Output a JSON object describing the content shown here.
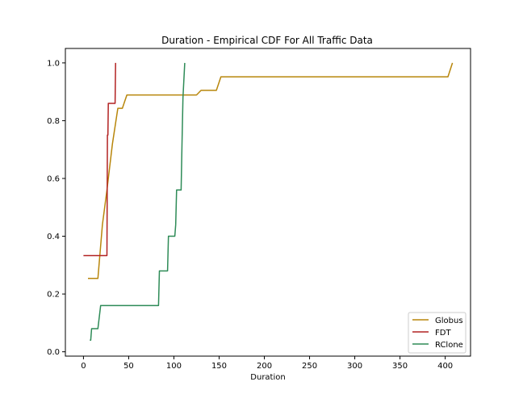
{
  "chart_data": {
    "type": "line",
    "title": "Duration - Empirical CDF For All Traffic Data",
    "xlabel": "Duration",
    "ylabel": "",
    "xlim": [
      -20,
      428
    ],
    "ylim": [
      -0.015,
      1.05
    ],
    "xticks": [
      0,
      50,
      100,
      150,
      200,
      250,
      300,
      350,
      400
    ],
    "yticks": [
      0.0,
      0.2,
      0.4,
      0.6,
      0.8,
      1.0
    ],
    "xtick_labels": [
      "0",
      "50",
      "100",
      "150",
      "200",
      "250",
      "300",
      "350",
      "400"
    ],
    "ytick_labels": [
      "0.0",
      "0.2",
      "0.4",
      "0.6",
      "0.8",
      "1.0"
    ],
    "grid": false,
    "legend_position": "lower right",
    "series": [
      {
        "name": "Globus",
        "color": "#b8860b",
        "points": [
          [
            5,
            0.254
          ],
          [
            16,
            0.254
          ],
          [
            21,
            0.44
          ],
          [
            26,
            0.56
          ],
          [
            32,
            0.72
          ],
          [
            38,
            0.843
          ],
          [
            43,
            0.843
          ],
          [
            48,
            0.889
          ],
          [
            125,
            0.889
          ],
          [
            130,
            0.905
          ],
          [
            147,
            0.905
          ],
          [
            152,
            0.952
          ],
          [
            403,
            0.952
          ],
          [
            408,
            1.0
          ]
        ]
      },
      {
        "name": "FDT",
        "color": "#b22222",
        "points": [
          [
            0,
            0.333
          ],
          [
            26,
            0.333
          ],
          [
            26.5,
            0.75
          ],
          [
            27,
            0.75
          ],
          [
            27.5,
            0.86
          ],
          [
            35,
            0.86
          ],
          [
            35.5,
            1.0
          ]
        ]
      },
      {
        "name": "RClone",
        "color": "#2e8b57",
        "points": [
          [
            7,
            0.04
          ],
          [
            8,
            0.04
          ],
          [
            9,
            0.08
          ],
          [
            16,
            0.08
          ],
          [
            19,
            0.16
          ],
          [
            83,
            0.16
          ],
          [
            84,
            0.28
          ],
          [
            93,
            0.28
          ],
          [
            94,
            0.4
          ],
          [
            101,
            0.4
          ],
          [
            102,
            0.44
          ],
          [
            103,
            0.56
          ],
          [
            108,
            0.56
          ],
          [
            109,
            0.72
          ],
          [
            110,
            0.88
          ],
          [
            112,
            1.0
          ]
        ]
      }
    ]
  }
}
